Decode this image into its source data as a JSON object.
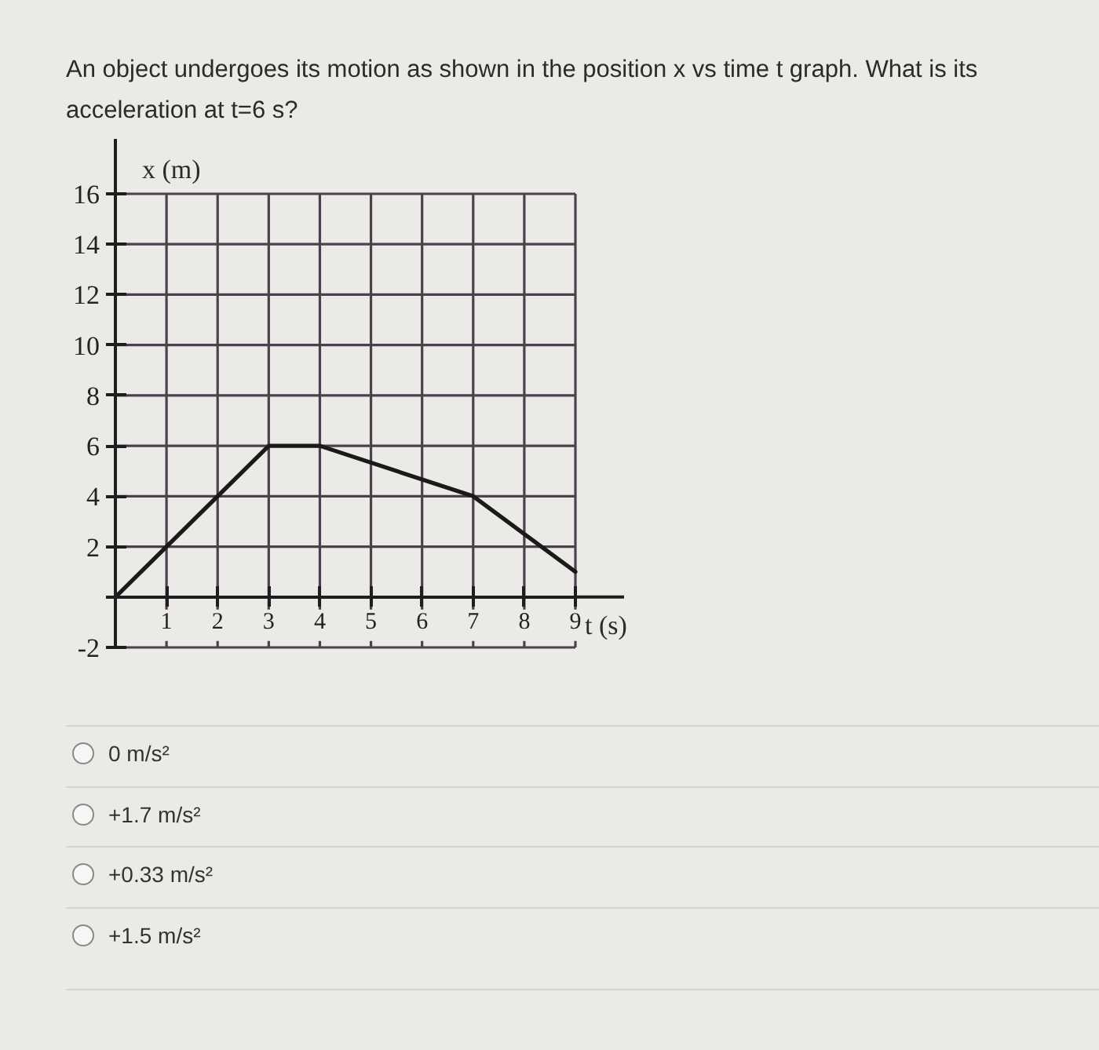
{
  "chart_data": {
    "type": "line",
    "title": "An object undergoes its motion as shown in the position x vs time t graph. What is its acceleration at t=6 s?",
    "xlabel": "t (s)",
    "ylabel": "x (m)",
    "x": [
      0,
      3,
      4,
      7,
      9
    ],
    "values": [
      0,
      6,
      6,
      4,
      1
    ],
    "color": "#1a1a1a",
    "xlim": [
      0,
      9
    ],
    "ylim": [
      -2,
      16
    ],
    "xticks": [
      {
        "value": 0,
        "label": null
      },
      1,
      2,
      3,
      4,
      5,
      6,
      7,
      8,
      9
    ],
    "yticks": [
      -2,
      {
        "value": 0,
        "label": null
      },
      2,
      4,
      6,
      8,
      10,
      12,
      14,
      16
    ],
    "grid": true,
    "annotations": [
      "0 m/s²",
      "+1.7 m/s²",
      "+0.33 m/s²",
      "+1.5 m/s²"
    ]
  }
}
